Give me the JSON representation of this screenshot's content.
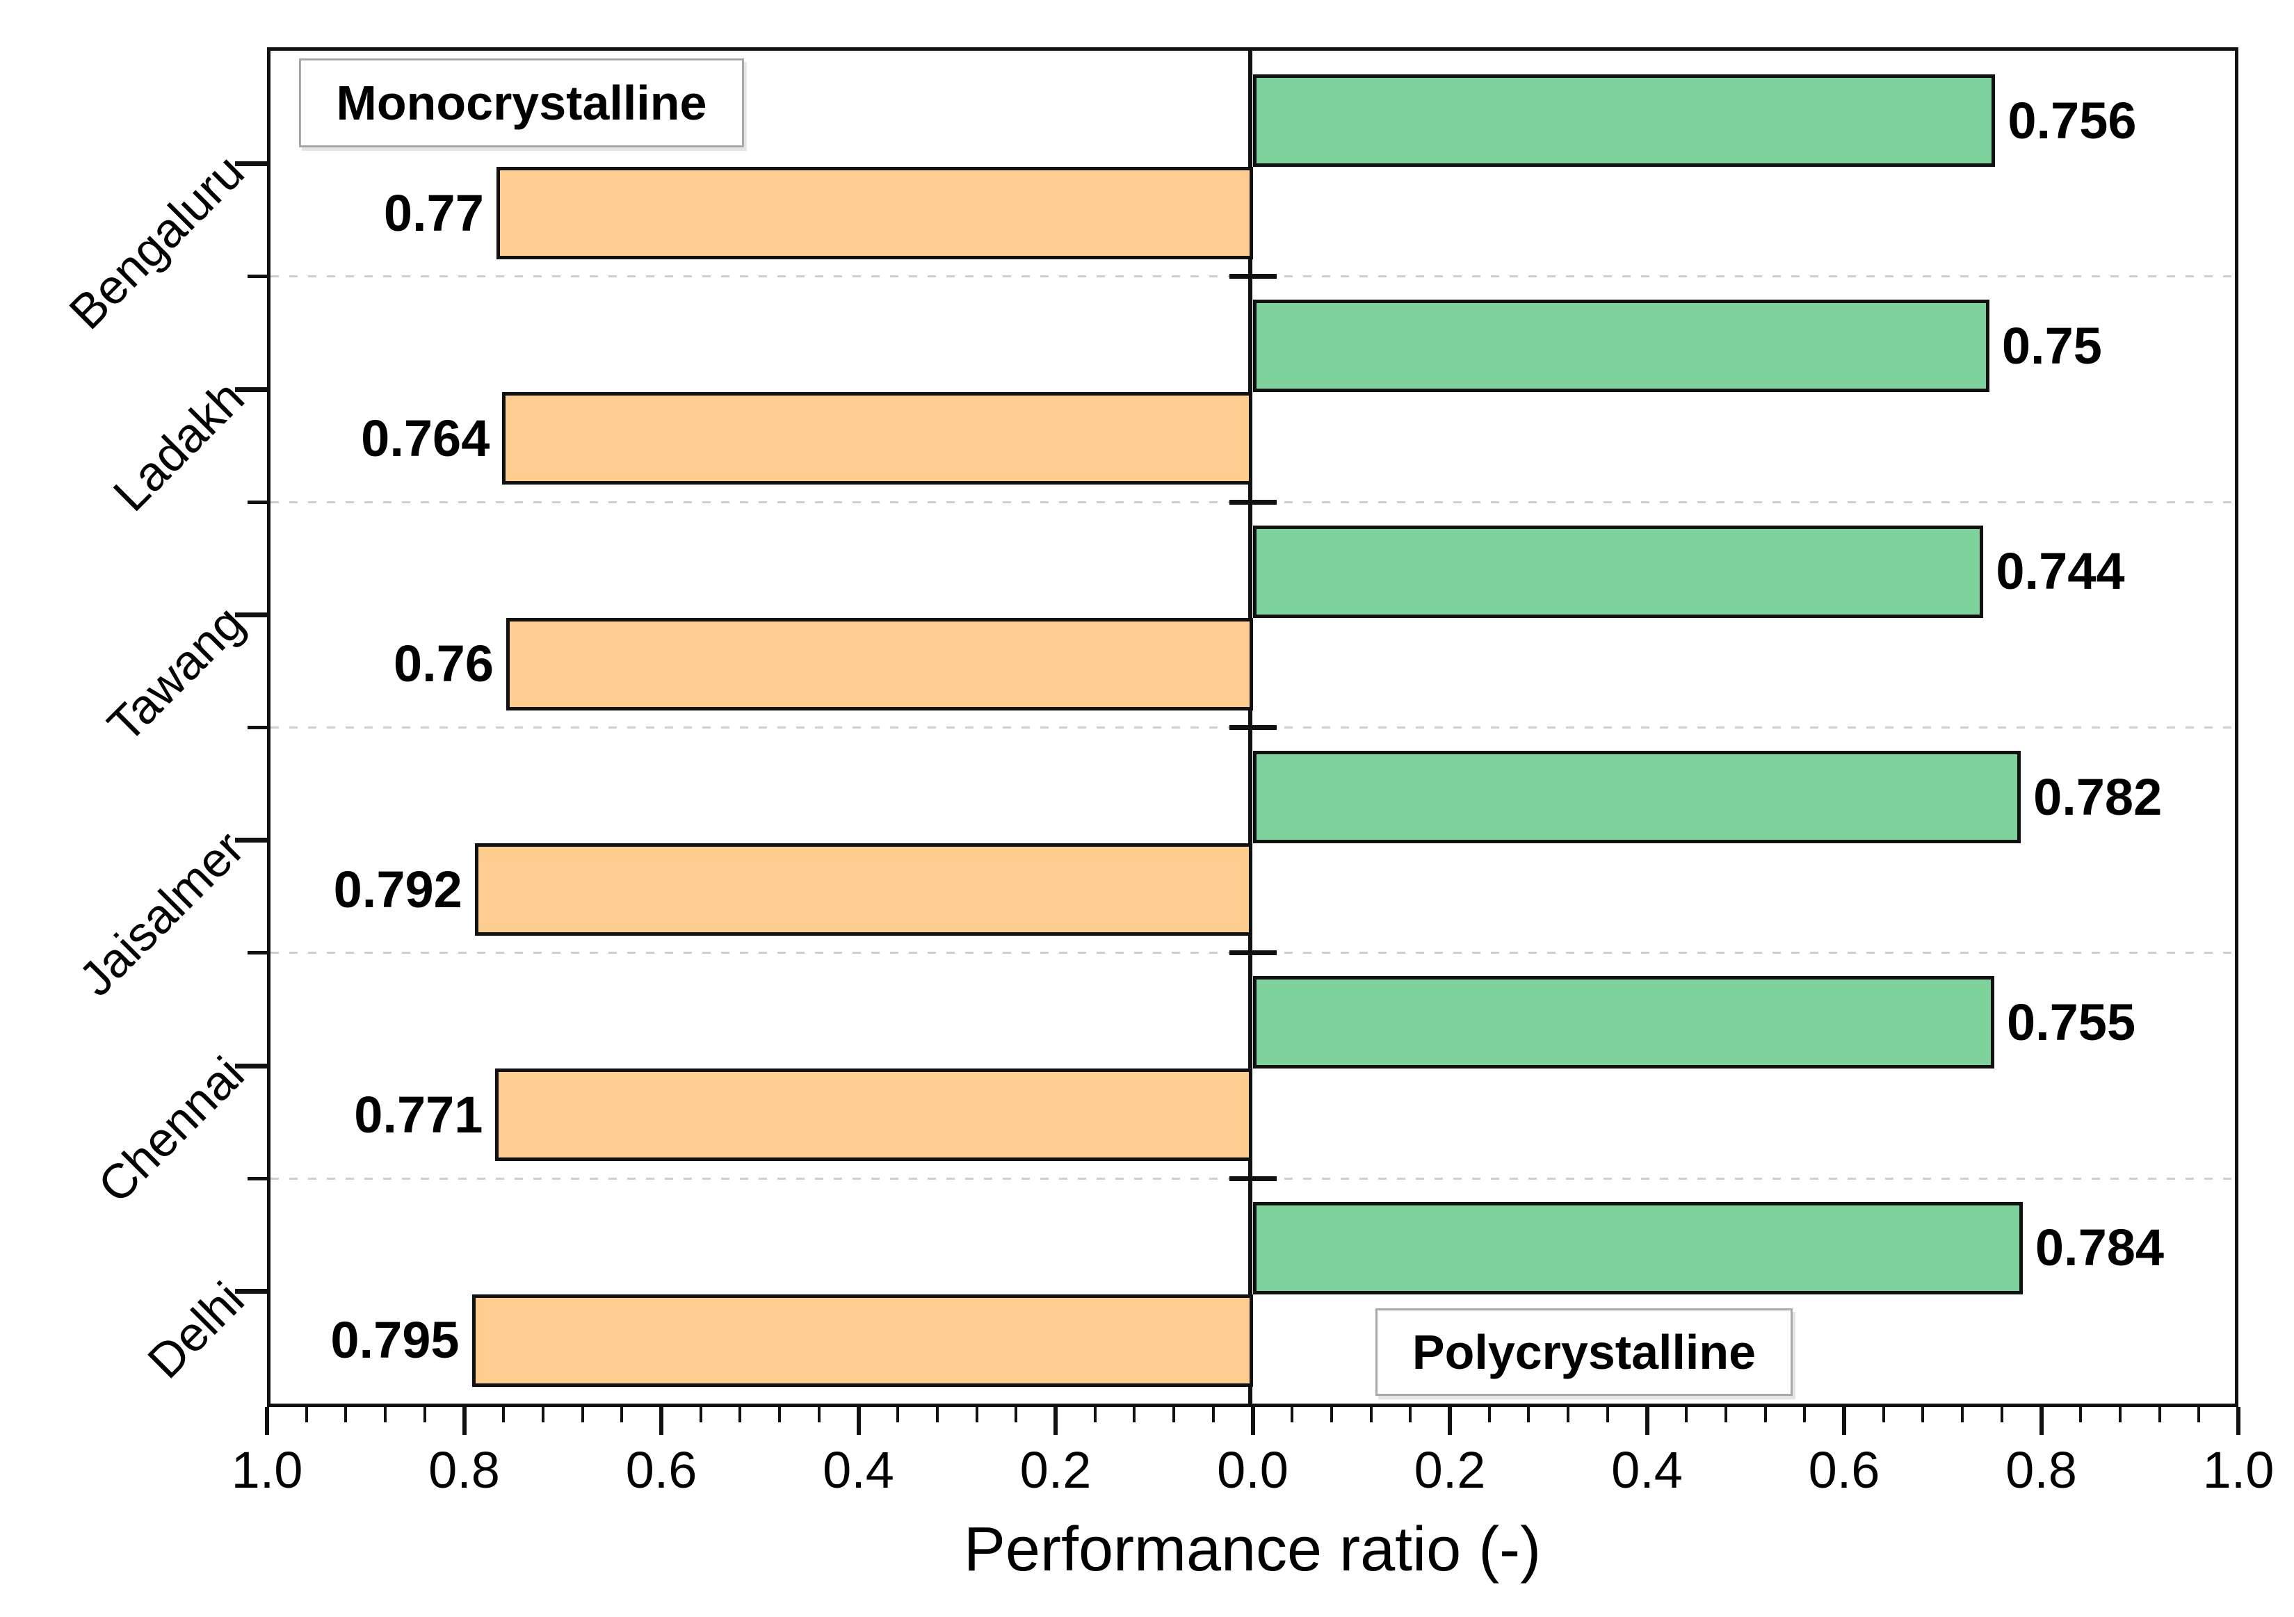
{
  "chart_data": {
    "type": "bar",
    "variant": "diverging-horizontal",
    "title": "",
    "xlabel": "Performance ratio (-)",
    "categories": [
      "Bengaluru",
      "Ladakh",
      "Tawang",
      "Jaisalmer",
      "Chennai",
      "Delhi"
    ],
    "series": [
      {
        "name": "Monocrystalline",
        "side": "left",
        "color": "#FDCD90",
        "values": [
          0.77,
          0.764,
          0.76,
          0.792,
          0.771,
          0.795
        ],
        "value_labels": [
          "0.77",
          "0.764",
          "0.76",
          "0.792",
          "0.771",
          "0.795"
        ]
      },
      {
        "name": "Polycrystalline",
        "side": "right",
        "color": "#7DD39B",
        "values": [
          0.756,
          0.75,
          0.744,
          0.782,
          0.755,
          0.784
        ],
        "value_labels": [
          "0.756",
          "0.75",
          "0.744",
          "0.782",
          "0.755",
          "0.784"
        ]
      }
    ],
    "x_axis": {
      "tick_labels": [
        "1.0",
        "0.8",
        "0.6",
        "0.4",
        "0.2",
        "0.0",
        "0.2",
        "0.4",
        "0.6",
        "0.8",
        "1.0"
      ],
      "range_each_side": [
        0,
        1.0
      ],
      "major_interval": 0.2,
      "minor_ticks_per_major": 4
    },
    "grid": {
      "category_separators": "dashed",
      "color": "#cfcfcf"
    },
    "legend": {
      "left_label": "Monocrystalline",
      "right_label": "Polycrystalline"
    }
  }
}
